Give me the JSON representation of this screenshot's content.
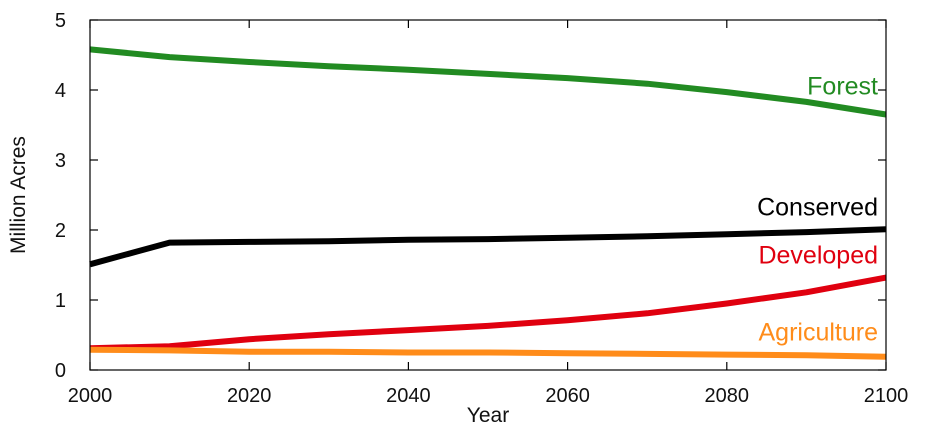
{
  "chart_data": {
    "type": "line",
    "title": "",
    "xlabel": "Year",
    "ylabel": "Million Acres",
    "xlim": [
      2000,
      2100
    ],
    "ylim": [
      0,
      5
    ],
    "x_ticks": [
      "2000",
      "2020",
      "2040",
      "2060",
      "2080",
      "2100"
    ],
    "y_ticks": [
      "0",
      "1",
      "2",
      "3",
      "4",
      "5"
    ],
    "grid": false,
    "x": [
      2000,
      2010,
      2020,
      2030,
      2040,
      2050,
      2060,
      2070,
      2080,
      2090,
      2100
    ],
    "series": [
      {
        "name": "Forest",
        "color": "#228B22",
        "values": [
          4.58,
          4.47,
          4.4,
          4.34,
          4.29,
          4.23,
          4.17,
          4.09,
          3.97,
          3.83,
          3.65
        ]
      },
      {
        "name": "Conserved",
        "color": "#000000",
        "values": [
          1.51,
          1.82,
          1.83,
          1.84,
          1.86,
          1.87,
          1.89,
          1.91,
          1.94,
          1.97,
          2.01
        ]
      },
      {
        "name": "Developed",
        "color": "#E0000F",
        "values": [
          0.31,
          0.34,
          0.44,
          0.51,
          0.57,
          0.63,
          0.71,
          0.81,
          0.95,
          1.11,
          1.32
        ]
      },
      {
        "name": "Agriculture",
        "color": "#FF8C1A",
        "values": [
          0.29,
          0.28,
          0.26,
          0.26,
          0.25,
          0.25,
          0.24,
          0.23,
          0.22,
          0.21,
          0.19
        ]
      }
    ]
  }
}
